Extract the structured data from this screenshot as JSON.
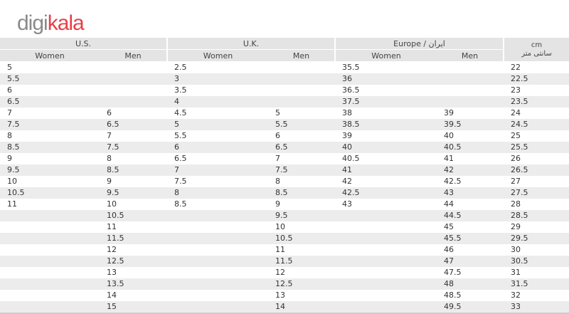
{
  "logo": {
    "part1": "digi",
    "part2": "kala"
  },
  "headers": {
    "us": "U.S.",
    "uk": "U.K.",
    "europe": "Europe / ایران",
    "women": "Women",
    "men": "Men",
    "cm": "cm",
    "cm_fa": "سانتی متر"
  },
  "rows": [
    [
      "5",
      "",
      "2.5",
      "",
      "35.5",
      "",
      "22"
    ],
    [
      "5.5",
      "",
      "3",
      "",
      "36",
      "",
      "22.5"
    ],
    [
      "6",
      "",
      "3.5",
      "",
      "36.5",
      "",
      "23"
    ],
    [
      "6.5",
      "",
      "4",
      "",
      "37.5",
      "",
      "23.5"
    ],
    [
      "7",
      "6",
      "4.5",
      "5",
      "38",
      "39",
      "24"
    ],
    [
      "7.5",
      "6.5",
      "5",
      "5.5",
      "38.5",
      "39.5",
      "24.5"
    ],
    [
      "8",
      "7",
      "5.5",
      "6",
      "39",
      "40",
      "25"
    ],
    [
      "8.5",
      "7.5",
      "6",
      "6.5",
      "40",
      "40.5",
      "25.5"
    ],
    [
      "9",
      "8",
      "6.5",
      "7",
      "40.5",
      "41",
      "26"
    ],
    [
      "9.5",
      "8.5",
      "7",
      "7.5",
      "41",
      "42",
      "26.5"
    ],
    [
      "10",
      "9",
      "7.5",
      "8",
      "42",
      "42.5",
      "27"
    ],
    [
      "10.5",
      "9.5",
      "8",
      "8.5",
      "42.5",
      "43",
      "27.5"
    ],
    [
      "11",
      "10",
      "8.5",
      "9",
      "43",
      "44",
      "28"
    ],
    [
      "",
      "10.5",
      "",
      "9.5",
      "",
      "44.5",
      "28.5"
    ],
    [
      "",
      "11",
      "",
      "10",
      "",
      "45",
      "29"
    ],
    [
      "",
      "11.5",
      "",
      "10.5",
      "",
      "45.5",
      "29.5"
    ],
    [
      "",
      "12",
      "",
      "11",
      "",
      "46",
      "30"
    ],
    [
      "",
      "12.5",
      "",
      "11.5",
      "",
      "47",
      "30.5"
    ],
    [
      "",
      "13",
      "",
      "12",
      "",
      "47.5",
      "31"
    ],
    [
      "",
      "13.5",
      "",
      "12.5",
      "",
      "48",
      "31.5"
    ],
    [
      "",
      "14",
      "",
      "13",
      "",
      "48.5",
      "32"
    ],
    [
      "",
      "15",
      "",
      "14",
      "",
      "49.5",
      "33"
    ]
  ]
}
